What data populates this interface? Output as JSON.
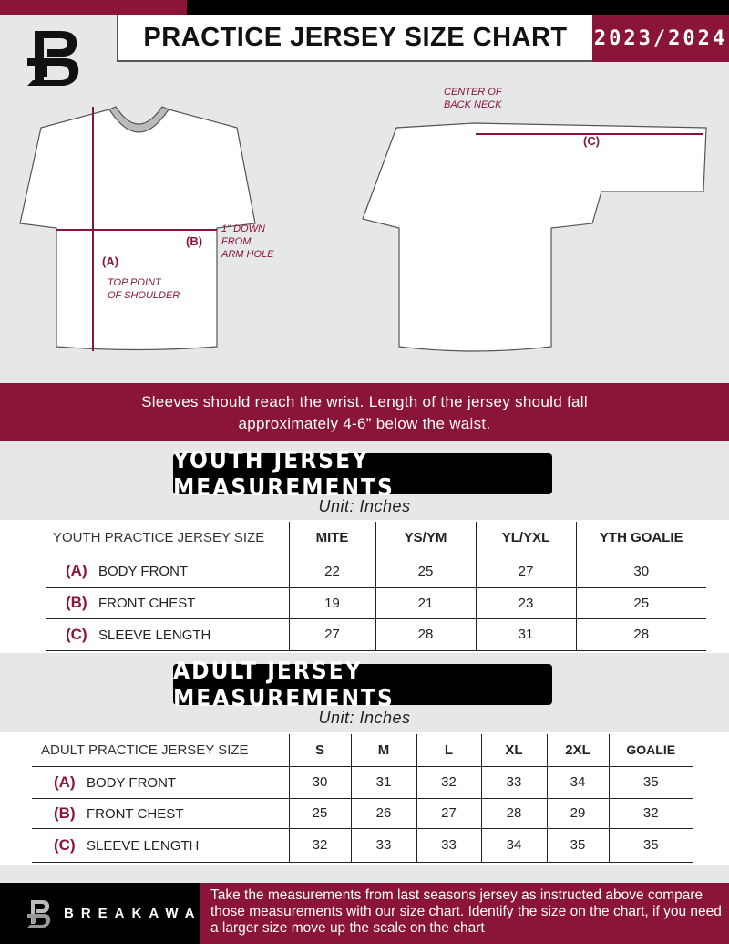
{
  "header": {
    "title": "PRACTICE JERSEY SIZE CHART",
    "season": "2023/2024"
  },
  "diagram": {
    "front_labels": {
      "a": "(A)",
      "b": "(B)",
      "top_point": "TOP POINT\nOF SHOULDER",
      "down": "1\" DOWN\nFROM\nARM HOLE"
    },
    "back_labels": {
      "c": "(C)",
      "center": "CENTER OF\nBACK NECK"
    }
  },
  "banner": {
    "line1": "Sleeves should reach the wrist. Length of the jersey should fall",
    "line2": "approximately 4-6” below the waist."
  },
  "youth": {
    "title": "YOUTH JERSEY MEASUREMENTS",
    "unit": "Unit: Inches",
    "header": "YOUTH PRACTICE JERSEY SIZE",
    "sizes": [
      "MITE",
      "YS/YM",
      "YL/YXL",
      "YTH GOALIE"
    ],
    "rows": [
      {
        "letter": "(A)",
        "label": "BODY FRONT",
        "values": [
          "22",
          "25",
          "27",
          "30"
        ]
      },
      {
        "letter": "(B)",
        "label": "FRONT CHEST",
        "values": [
          "19",
          "21",
          "23",
          "25"
        ]
      },
      {
        "letter": "(C)",
        "label": "SLEEVE LENGTH",
        "values": [
          "27",
          "28",
          "31",
          "28"
        ]
      }
    ]
  },
  "adult": {
    "title": "ADULT JERSEY MEASUREMENTS",
    "unit": "Unit: Inches",
    "header": "ADULT PRACTICE JERSEY SIZE",
    "sizes": [
      "S",
      "M",
      "L",
      "XL",
      "2XL",
      "GOALIE"
    ],
    "rows": [
      {
        "letter": "(A)",
        "label": "BODY FRONT",
        "values": [
          "30",
          "31",
          "32",
          "33",
          "34",
          "35"
        ]
      },
      {
        "letter": "(B)",
        "label": "FRONT CHEST",
        "values": [
          "25",
          "26",
          "27",
          "28",
          "29",
          "32"
        ]
      },
      {
        "letter": "(C)",
        "label": "SLEEVE LENGTH",
        "values": [
          "32",
          "33",
          "33",
          "34",
          "35",
          "35"
        ]
      }
    ]
  },
  "footer": {
    "brand": "BREAKAWAY",
    "text": "Take the measurements from last seasons jersey as instructed above compare those measurements  with our size chart. Identify the size on the chart, if you need a larger size move up the scale on the chart"
  },
  "colors": {
    "accent": "#8a1538",
    "background": "#e6e7e8"
  }
}
